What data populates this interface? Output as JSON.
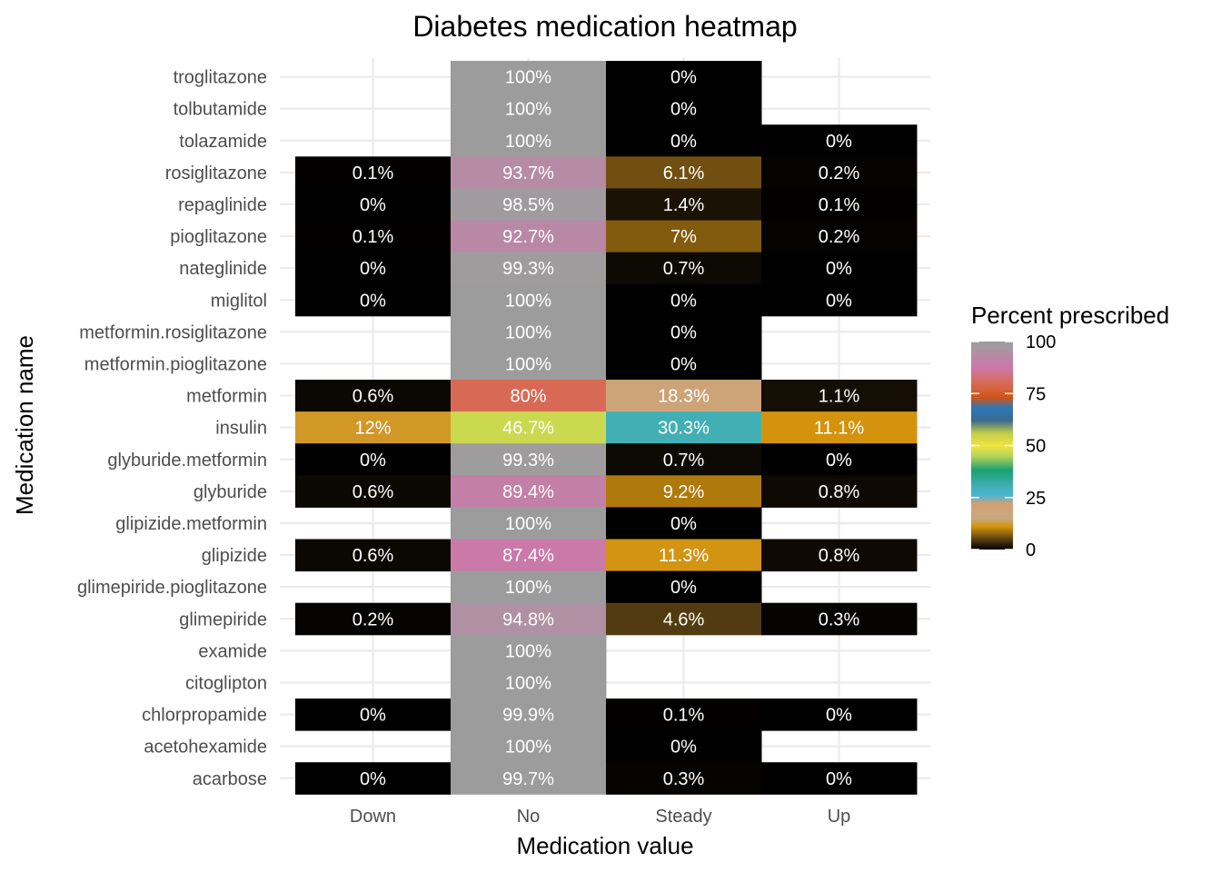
{
  "chart_data": {
    "type": "heatmap",
    "title": "Diabetes medication heatmap",
    "xlabel": "Medication value",
    "ylabel": "Medication name",
    "x_categories": [
      "Down",
      "No",
      "Steady",
      "Up"
    ],
    "y_categories": [
      "troglitazone",
      "tolbutamide",
      "tolazamide",
      "rosiglitazone",
      "repaglinide",
      "pioglitazone",
      "nateglinide",
      "miglitol",
      "metformin.rosiglitazone",
      "metformin.pioglitazone",
      "metformin",
      "insulin",
      "glyburide.metformin",
      "glyburide",
      "glipizide.metformin",
      "glipizide",
      "glimepiride.pioglitazone",
      "glimepiride",
      "examide",
      "citoglipton",
      "chlorpropamide",
      "acetohexamide",
      "acarbose"
    ],
    "values": [
      [
        null,
        100,
        0,
        null
      ],
      [
        null,
        100,
        0,
        null
      ],
      [
        null,
        100,
        0,
        0
      ],
      [
        0.1,
        93.7,
        6.1,
        0.2
      ],
      [
        0,
        98.5,
        1.4,
        0.1
      ],
      [
        0.1,
        92.7,
        7,
        0.2
      ],
      [
        0,
        99.3,
        0.7,
        0
      ],
      [
        0,
        100,
        0,
        0
      ],
      [
        null,
        100,
        0,
        null
      ],
      [
        null,
        100,
        0,
        null
      ],
      [
        0.6,
        80,
        18.3,
        1.1
      ],
      [
        12,
        46.7,
        30.3,
        11.1
      ],
      [
        0,
        99.3,
        0.7,
        0
      ],
      [
        0.6,
        89.4,
        9.2,
        0.8
      ],
      [
        null,
        100,
        0,
        null
      ],
      [
        0.6,
        87.4,
        11.3,
        0.8
      ],
      [
        null,
        100,
        0,
        null
      ],
      [
        0.2,
        94.8,
        4.6,
        0.3
      ],
      [
        null,
        100,
        null,
        null
      ],
      [
        null,
        100,
        null,
        null
      ],
      [
        0,
        99.9,
        0.1,
        0
      ],
      [
        null,
        100,
        0,
        null
      ],
      [
        0,
        99.7,
        0.3,
        0
      ]
    ],
    "value_suffix": "%",
    "legend": {
      "title": "Percent prescribed",
      "ticks": [
        0,
        25,
        50,
        75,
        100
      ],
      "range": [
        0,
        100
      ],
      "placement": "right"
    },
    "color_stops": [
      {
        "v": 0,
        "color": "#000000"
      },
      {
        "v": 5,
        "color": "#5a4012"
      },
      {
        "v": 11,
        "color": "#d4920a"
      },
      {
        "v": 15,
        "color": "#c8a880"
      },
      {
        "v": 22,
        "color": "#d2a070"
      },
      {
        "v": 26,
        "color": "#4ab4d6"
      },
      {
        "v": 30,
        "color": "#44b0b8"
      },
      {
        "v": 38,
        "color": "#18a070"
      },
      {
        "v": 45,
        "color": "#b8d458"
      },
      {
        "v": 50,
        "color": "#f0e440"
      },
      {
        "v": 56,
        "color": "#c0cc48"
      },
      {
        "v": 62,
        "color": "#3a6a90"
      },
      {
        "v": 68,
        "color": "#2a78b8"
      },
      {
        "v": 73,
        "color": "#d05418"
      },
      {
        "v": 80,
        "color": "#d86a55"
      },
      {
        "v": 87,
        "color": "#cc78a8"
      },
      {
        "v": 93,
        "color": "#b889a4"
      },
      {
        "v": 97,
        "color": "#a69aa2"
      },
      {
        "v": 100,
        "color": "#9c9c9c"
      }
    ],
    "grid": true
  }
}
